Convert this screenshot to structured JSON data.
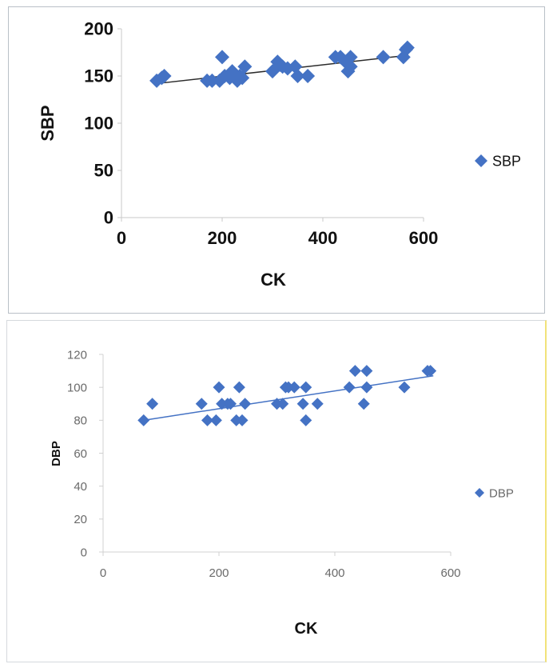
{
  "chart_data": [
    {
      "type": "scatter",
      "title": "",
      "xlabel": "CK",
      "ylabel": "SBP",
      "xlim": [
        0,
        600
      ],
      "ylim": [
        0,
        200
      ],
      "xticks": [
        0,
        200,
        400,
        600
      ],
      "yticks": [
        0,
        50,
        100,
        150,
        200
      ],
      "grid": false,
      "legend": "right",
      "marker_color": "#4472c4",
      "trend_color": "#2b2b2b",
      "series": [
        {
          "name": "SBP",
          "x": [
            70,
            80,
            85,
            170,
            180,
            195,
            200,
            205,
            215,
            220,
            230,
            235,
            240,
            245,
            300,
            310,
            315,
            320,
            330,
            345,
            350,
            370,
            425,
            435,
            445,
            450,
            455,
            455,
            520,
            560,
            565,
            568
          ],
          "y": [
            145,
            148,
            150,
            145,
            145,
            145,
            170,
            150,
            148,
            155,
            145,
            150,
            148,
            160,
            155,
            165,
            162,
            160,
            158,
            160,
            150,
            150,
            170,
            170,
            165,
            155,
            170,
            160,
            170,
            170,
            178,
            180
          ]
        }
      ],
      "trendline": {
        "x": [
          70,
          570
        ],
        "y": [
          142,
          172
        ]
      }
    },
    {
      "type": "scatter",
      "title": "",
      "xlabel": "CK",
      "ylabel": "DBP",
      "xlim": [
        0,
        600
      ],
      "ylim": [
        0,
        120
      ],
      "xticks": [
        0,
        200,
        400,
        600
      ],
      "yticks": [
        0,
        20,
        40,
        60,
        80,
        100,
        120
      ],
      "grid": false,
      "legend": "right",
      "marker_color": "#4472c4",
      "trend_color": "#4472c4",
      "series": [
        {
          "name": "DBP",
          "x": [
            70,
            85,
            170,
            180,
            195,
            200,
            205,
            215,
            220,
            230,
            235,
            240,
            245,
            300,
            310,
            315,
            320,
            330,
            345,
            350,
            350,
            370,
            425,
            435,
            450,
            455,
            455,
            520,
            560,
            565
          ],
          "y": [
            80,
            90,
            90,
            80,
            80,
            100,
            90,
            90,
            90,
            80,
            100,
            80,
            90,
            90,
            90,
            100,
            100,
            100,
            90,
            80,
            100,
            90,
            100,
            110,
            90,
            100,
            110,
            100,
            110,
            110
          ]
        }
      ],
      "trendline": {
        "x": [
          70,
          570
        ],
        "y": [
          80,
          107
        ]
      }
    }
  ]
}
